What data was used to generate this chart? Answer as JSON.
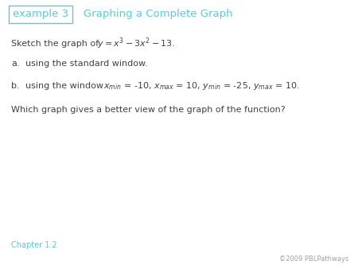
{
  "title_box_text": "example 3",
  "title_main_text": "Graphing a Complete Graph",
  "title_color": "#5bc8d8",
  "box_color": "#5bc8d8",
  "body_text_color": "#404040",
  "chapter_text": "Chapter 1.2",
  "chapter_color": "#5bc8d8",
  "copyright_text": "©2009 PBLPathways",
  "copyright_color": "#a0a0a0",
  "background_color": "#ffffff",
  "font_size_title": 9.5,
  "font_size_body": 8.0,
  "font_size_chapter": 7.0,
  "font_size_copyright": 6.0
}
